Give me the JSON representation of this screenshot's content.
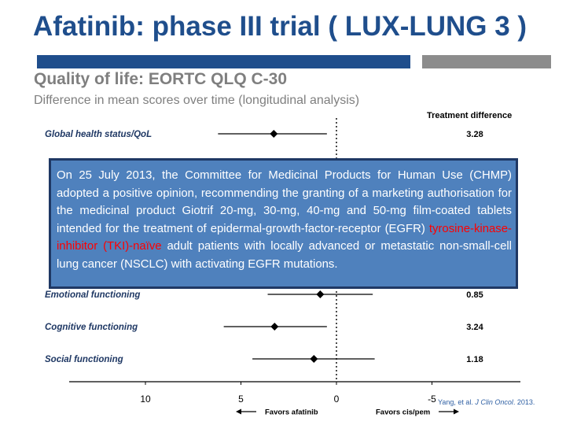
{
  "slide": {
    "title": "Afatinib: phase III trial ( LUX-LUNG 3 )",
    "subtitle": "Quality of life: EORTC QLQ C-30",
    "subtitle2": "Difference in mean scores over time (longitudinal analysis)",
    "treatment_difference_header": "Treatment difference",
    "favors_afatinib": "Favors afatinib",
    "favors_cis_pem": "Favors cis/pem",
    "citation_prefix": "Yang, et al. ",
    "citation_journal": "J Clin Oncol",
    "citation_suffix": ". 2013.",
    "colors": {
      "title": "#1f4e8c",
      "bar_blue": "#1f4e8c",
      "bar_gray": "#8c8c8c",
      "overlay_fill": "#4f81bd",
      "overlay_border": "#1f3864",
      "highlight_red": "#ff0000"
    }
  },
  "overlay": {
    "text_before": "On 25 July 2013, the Committee for Medicinal Products for Human Use (CHMP) adopted a positive opinion, recommending the granting of a marketing authorisation for the medicinal product Giotrif 20-mg, 30-mg, 40-mg and 50-mg film-coated tablets intended for the treatment of epidermal-growth-factor-receptor (EGFR) ",
    "text_highlight": "tyrosine-kinase-inhibitor (TKI)-naïve",
    "text_after": " adult patients with locally advanced or metastatic non-small-cell lung cancer (NSCLC) with activating EGFR mutations."
  },
  "chart_data": {
    "type": "forest",
    "title": "Quality of life: EORTC QLQ C-30",
    "subtitle": "Difference in mean scores over time (longitudinal analysis)",
    "xlabel": "",
    "x_reversed": true,
    "xlim": [
      15,
      -5
    ],
    "xticks": [
      10,
      5,
      0,
      -5
    ],
    "reference_line": 0,
    "value_column_header": "Treatment difference",
    "rows": [
      {
        "label": "Global health status/QoL",
        "estimate": 3.28,
        "ci": [
          6.2,
          0.5
        ],
        "value_label": "3.28"
      },
      {
        "label": "Emotional functioning",
        "estimate": 0.85,
        "ci": [
          3.6,
          -1.9
        ],
        "value_label": "0.85"
      },
      {
        "label": "Cognitive functioning",
        "estimate": 3.24,
        "ci": [
          5.9,
          0.5
        ],
        "value_label": "3.24"
      },
      {
        "label": "Social functioning",
        "estimate": 1.18,
        "ci": [
          4.4,
          -2.0
        ],
        "value_label": "1.18"
      }
    ]
  }
}
